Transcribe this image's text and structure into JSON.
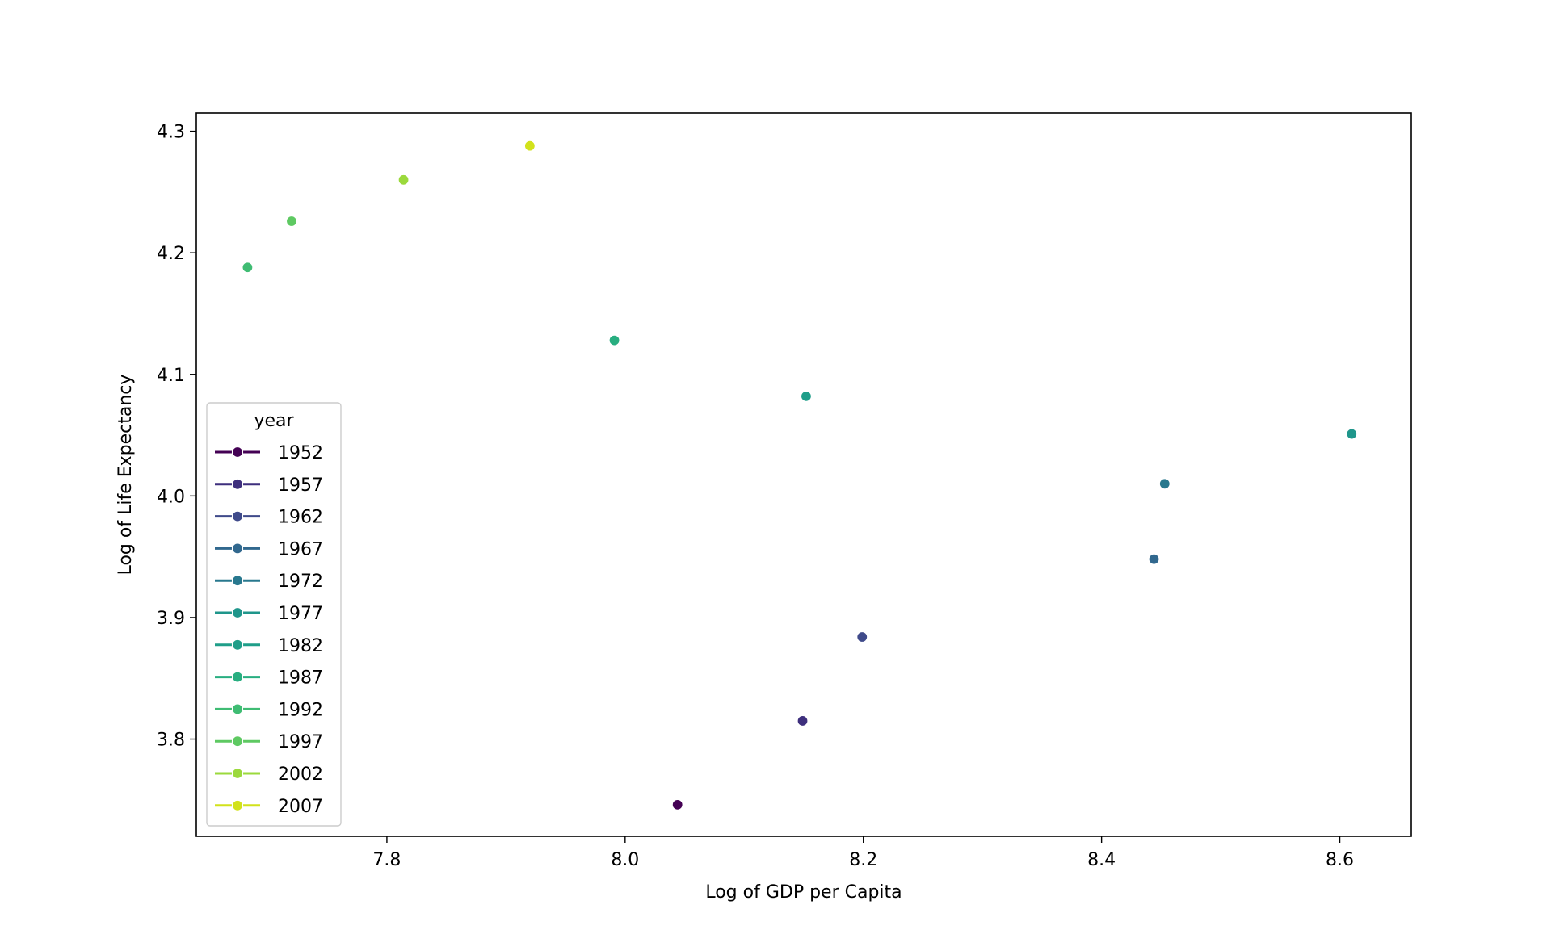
{
  "chart_data": {
    "type": "scatter",
    "title": "",
    "xlabel": "Log of GDP per Capita",
    "ylabel": "Log of Life Expectancy",
    "xlim": [
      7.64,
      8.66
    ],
    "ylim": [
      3.72,
      4.315
    ],
    "xticks": [
      "7.8",
      "8.0",
      "8.2",
      "8.4",
      "8.6"
    ],
    "yticks": [
      "3.8",
      "3.9",
      "4.0",
      "4.1",
      "4.2",
      "4.3"
    ],
    "grid": false,
    "legend": {
      "title": "year",
      "placement": "lower-left"
    },
    "series": [
      {
        "name": "1952",
        "color": "#440154",
        "x": [
          8.044
        ],
        "y": [
          3.746
        ]
      },
      {
        "name": "1957",
        "color": "#3e2f7d",
        "x": [
          8.149
        ],
        "y": [
          3.815
        ]
      },
      {
        "name": "1962",
        "color": "#3f4a8a",
        "x": [
          8.199
        ],
        "y": [
          3.884
        ]
      },
      {
        "name": "1967",
        "color": "#31688e",
        "x": [
          8.444
        ],
        "y": [
          3.948
        ]
      },
      {
        "name": "1972",
        "color": "#28788e",
        "x": [
          8.453
        ],
        "y": [
          4.01
        ]
      },
      {
        "name": "1977",
        "color": "#1f968b",
        "x": [
          8.61
        ],
        "y": [
          4.051
        ]
      },
      {
        "name": "1982",
        "color": "#1f9e89",
        "x": [
          8.152
        ],
        "y": [
          4.082
        ]
      },
      {
        "name": "1987",
        "color": "#28ae80",
        "x": [
          7.991
        ],
        "y": [
          4.128
        ]
      },
      {
        "name": "1992",
        "color": "#3fbc73",
        "x": [
          7.683
        ],
        "y": [
          4.188
        ]
      },
      {
        "name": "1997",
        "color": "#5ec962",
        "x": [
          7.72
        ],
        "y": [
          4.226
        ]
      },
      {
        "name": "2002",
        "color": "#9bd93c",
        "x": [
          7.814
        ],
        "y": [
          4.26
        ]
      },
      {
        "name": "2007",
        "color": "#d2e21b",
        "x": [
          7.92
        ],
        "y": [
          4.288
        ]
      }
    ]
  }
}
